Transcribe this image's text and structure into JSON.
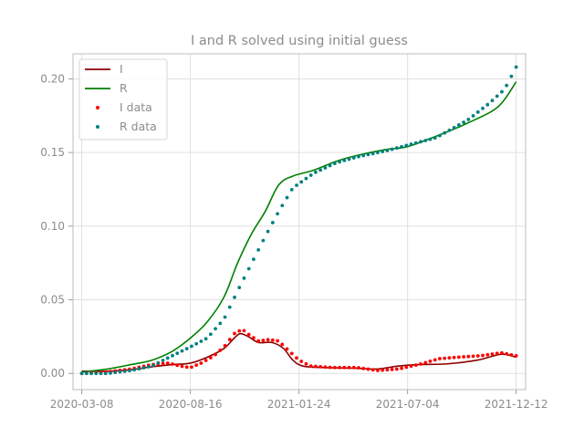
{
  "chart_data": {
    "type": "line",
    "title": "I and R solved using initial guess",
    "xlabel": "",
    "ylabel": "",
    "x_ticks": [
      "2020-03-08",
      "2020-08-16",
      "2021-01-24",
      "2021-07-04",
      "2021-12-12"
    ],
    "x_range": [
      "2020-02-24",
      "2021-12-26"
    ],
    "ylim": [
      -0.011,
      0.217
    ],
    "y_ticks": [
      0.0,
      0.05,
      0.1,
      0.15,
      0.2
    ],
    "y_tick_labels": [
      "0.00",
      "0.05",
      "0.10",
      "0.15",
      "0.20"
    ],
    "grid": true,
    "legend_position": "top-left",
    "series": [
      {
        "name": "I",
        "style": "line",
        "color": "#8b0000",
        "points": [
          [
            "2020-03-08",
            0.0015
          ],
          [
            "2020-04-15",
            0.0015
          ],
          [
            "2020-05-20",
            0.0025
          ],
          [
            "2020-06-20",
            0.0045
          ],
          [
            "2020-07-20",
            0.006
          ],
          [
            "2020-08-16",
            0.007
          ],
          [
            "2020-09-10",
            0.011
          ],
          [
            "2020-10-05",
            0.017
          ],
          [
            "2020-10-20",
            0.024
          ],
          [
            "2020-10-29",
            0.027
          ],
          [
            "2020-11-10",
            0.025
          ],
          [
            "2020-11-25",
            0.021
          ],
          [
            "2020-12-15",
            0.021
          ],
          [
            "2021-01-01",
            0.017
          ],
          [
            "2021-01-15",
            0.009
          ],
          [
            "2021-01-30",
            0.005
          ],
          [
            "2021-03-01",
            0.004
          ],
          [
            "2021-04-20",
            0.0035
          ],
          [
            "2021-05-20",
            0.003
          ],
          [
            "2021-06-20",
            0.005
          ],
          [
            "2021-07-20",
            0.006
          ],
          [
            "2021-09-01",
            0.0065
          ],
          [
            "2021-10-15",
            0.009
          ],
          [
            "2021-11-20",
            0.013
          ],
          [
            "2021-12-12",
            0.011
          ]
        ]
      },
      {
        "name": "R",
        "style": "line",
        "color": "#008000",
        "points": [
          [
            "2020-03-08",
            0.001
          ],
          [
            "2020-04-15",
            0.003
          ],
          [
            "2020-05-20",
            0.006
          ],
          [
            "2020-06-20",
            0.009
          ],
          [
            "2020-07-20",
            0.015
          ],
          [
            "2020-08-16",
            0.024
          ],
          [
            "2020-09-10",
            0.035
          ],
          [
            "2020-10-05",
            0.052
          ],
          [
            "2020-10-25",
            0.075
          ],
          [
            "2020-11-15",
            0.095
          ],
          [
            "2020-12-05",
            0.11
          ],
          [
            "2020-12-25",
            0.128
          ],
          [
            "2021-01-15",
            0.134
          ],
          [
            "2021-02-15",
            0.138
          ],
          [
            "2021-03-20",
            0.144
          ],
          [
            "2021-04-20",
            0.148
          ],
          [
            "2021-06-01",
            0.152
          ],
          [
            "2021-07-04",
            0.154
          ],
          [
            "2021-08-15",
            0.161
          ],
          [
            "2021-10-01",
            0.17
          ],
          [
            "2021-11-15",
            0.181
          ],
          [
            "2021-12-12",
            0.198
          ]
        ]
      },
      {
        "name": "I data",
        "style": "dots",
        "color": "#ff0000",
        "points": [
          [
            "2020-03-08",
            0.0
          ],
          [
            "2020-04-15",
            0.001
          ],
          [
            "2020-05-20",
            0.003
          ],
          [
            "2020-06-20",
            0.006
          ],
          [
            "2020-07-15",
            0.007
          ],
          [
            "2020-08-01",
            0.005
          ],
          [
            "2020-08-16",
            0.004
          ],
          [
            "2020-09-01",
            0.007
          ],
          [
            "2020-09-20",
            0.012
          ],
          [
            "2020-10-05",
            0.018
          ],
          [
            "2020-10-20",
            0.027
          ],
          [
            "2020-11-01",
            0.03
          ],
          [
            "2020-11-12",
            0.026
          ],
          [
            "2020-11-25",
            0.022
          ],
          [
            "2020-12-10",
            0.023
          ],
          [
            "2020-12-25",
            0.022
          ],
          [
            "2021-01-10",
            0.015
          ],
          [
            "2021-01-24",
            0.009
          ],
          [
            "2021-02-10",
            0.005
          ],
          [
            "2021-03-15",
            0.004
          ],
          [
            "2021-04-20",
            0.004
          ],
          [
            "2021-05-20",
            0.002
          ],
          [
            "2021-06-20",
            0.003
          ],
          [
            "2021-07-20",
            0.006
          ],
          [
            "2021-08-20",
            0.01
          ],
          [
            "2021-09-15",
            0.011
          ],
          [
            "2021-10-20",
            0.012
          ],
          [
            "2021-11-20",
            0.014
          ],
          [
            "2021-12-12",
            0.012
          ]
        ]
      },
      {
        "name": "R data",
        "style": "dots",
        "color": "#008080",
        "points": [
          [
            "2020-03-08",
            0.0
          ],
          [
            "2020-04-15",
            0.0
          ],
          [
            "2020-05-20",
            0.002
          ],
          [
            "2020-06-20",
            0.005
          ],
          [
            "2020-07-20",
            0.012
          ],
          [
            "2020-08-16",
            0.018
          ],
          [
            "2020-09-10",
            0.024
          ],
          [
            "2020-10-05",
            0.037
          ],
          [
            "2020-10-25",
            0.056
          ],
          [
            "2020-11-15",
            0.075
          ],
          [
            "2020-12-05",
            0.093
          ],
          [
            "2020-12-25",
            0.11
          ],
          [
            "2021-01-15",
            0.126
          ],
          [
            "2021-02-15",
            0.136
          ],
          [
            "2021-03-20",
            0.143
          ],
          [
            "2021-04-20",
            0.147
          ],
          [
            "2021-06-01",
            0.151
          ],
          [
            "2021-07-04",
            0.155
          ],
          [
            "2021-08-15",
            0.16
          ],
          [
            "2021-10-01",
            0.172
          ],
          [
            "2021-11-01",
            0.183
          ],
          [
            "2021-11-25",
            0.193
          ],
          [
            "2021-12-12",
            0.208
          ]
        ]
      }
    ]
  }
}
